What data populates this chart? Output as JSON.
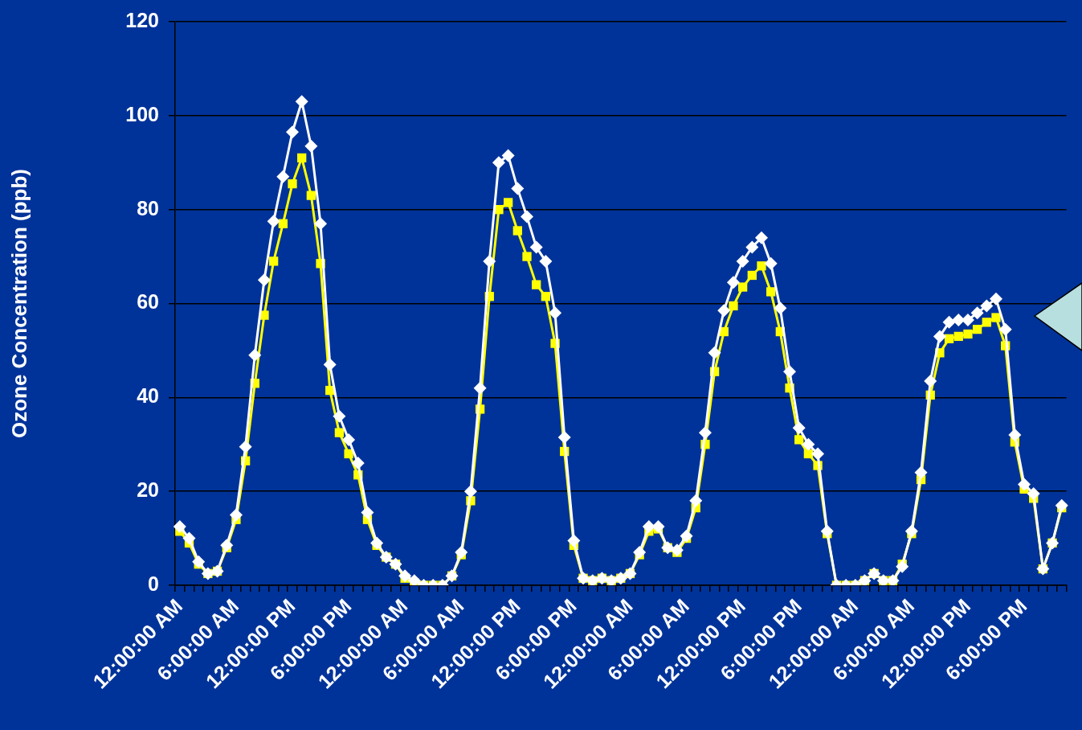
{
  "chart_data": {
    "type": "line",
    "ylabel": "Ozone Concentration (ppb)",
    "categories": [
      "12:00:00 AM",
      null,
      null,
      null,
      null,
      null,
      "6:00:00 AM",
      null,
      null,
      null,
      null,
      null,
      "12:00:00 PM",
      null,
      null,
      null,
      null,
      null,
      "6:00:00 PM",
      null,
      null,
      null,
      null,
      null,
      "12:00:00 AM",
      null,
      null,
      null,
      null,
      null,
      "6:00:00 AM",
      null,
      null,
      null,
      null,
      null,
      "12:00:00 PM",
      null,
      null,
      null,
      null,
      null,
      "6:00:00 PM",
      null,
      null,
      null,
      null,
      null,
      "12:00:00 AM",
      null,
      null,
      null,
      null,
      null,
      "6:00:00 AM",
      null,
      null,
      null,
      null,
      null,
      "12:00:00 PM",
      null,
      null,
      null,
      null,
      null,
      "6:00:00 PM",
      null,
      null,
      null,
      null,
      null,
      "12:00:00 AM",
      null,
      null,
      null,
      null,
      null,
      "6:00:00 AM",
      null,
      null,
      null,
      null,
      null,
      "12:00:00 PM",
      null,
      null,
      null,
      null,
      null,
      "6:00:00 PM",
      null,
      null,
      null,
      null
    ],
    "series": [
      {
        "color": "#ffffff",
        "marker": "diamond",
        "values": [
          12.5,
          10,
          5,
          2.5,
          3,
          8.5,
          15,
          29.5,
          49,
          65,
          77.5,
          87,
          96.5,
          103,
          93.5,
          77,
          47,
          36,
          31,
          26,
          15.5,
          9,
          6,
          4.5,
          2,
          1,
          0,
          0,
          0,
          2,
          7,
          20,
          42,
          69,
          90,
          91.5,
          84.5,
          78.5,
          72,
          69,
          58,
          31.5,
          9.5,
          1.5,
          1,
          1.5,
          1,
          1.5,
          2.5,
          7,
          12.5,
          12.5,
          8,
          7.5,
          10.5,
          18,
          32.5,
          49.5,
          58.5,
          64.5,
          69,
          72,
          74,
          68.5,
          59,
          45.5,
          33.5,
          30,
          28,
          11.5,
          0,
          0,
          0,
          1,
          2.5,
          1,
          1,
          4,
          11.5,
          24,
          43.5,
          53,
          56,
          56.5,
          56.5,
          58,
          59.5,
          61,
          54.5,
          32,
          21.5,
          19.5,
          3.5,
          9,
          17
        ]
      },
      {
        "color": "#ffff00",
        "marker": "square",
        "values": [
          11.5,
          9,
          4.5,
          2.5,
          3,
          8,
          14,
          26.5,
          43,
          57.5,
          69,
          77,
          85.5,
          91,
          83,
          68.5,
          41.5,
          32.5,
          28,
          23.5,
          14,
          8.5,
          6,
          4.5,
          1.5,
          0.5,
          0,
          0,
          0,
          2,
          6.5,
          18,
          37.5,
          61.5,
          80,
          81.5,
          75.5,
          70,
          64,
          61.5,
          51.5,
          28.5,
          8.5,
          1.5,
          1,
          1.5,
          1,
          1.5,
          2.5,
          6.5,
          11.5,
          12,
          8,
          7,
          10,
          16.5,
          30,
          45.5,
          54,
          59.5,
          63.5,
          66,
          68,
          62.5,
          54,
          42,
          31,
          28,
          25.5,
          11,
          0,
          0,
          0,
          1,
          2.5,
          1,
          1,
          4.5,
          11,
          22.5,
          40.5,
          49.5,
          52.5,
          53,
          53.5,
          54.5,
          56,
          57,
          51,
          30.5,
          20.5,
          18.5,
          3.5,
          9,
          16.5
        ]
      }
    ],
    "ylim": [
      0,
      120
    ],
    "yticks": [
      0,
      20,
      40,
      60,
      80,
      100,
      120
    ],
    "grid": "y",
    "legend": false,
    "line_style": "solid"
  }
}
